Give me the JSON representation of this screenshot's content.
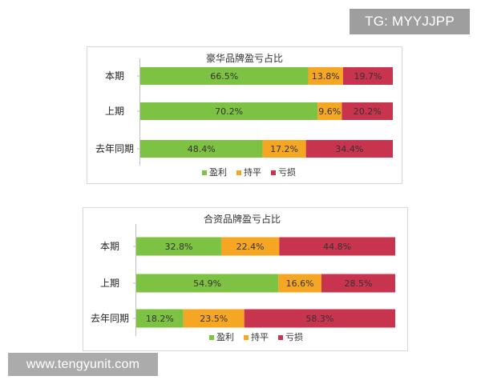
{
  "watermarks": {
    "top_right": "TG: MYYJJPP",
    "bottom_left": "www.tengyunit.com"
  },
  "colors": {
    "profit": "#7dc242",
    "breakeven": "#f5a623",
    "loss": "#c8334d"
  },
  "chart_data": [
    {
      "type": "bar",
      "orientation": "horizontal",
      "stacked": true,
      "percent": true,
      "title": "豪华品牌盈亏占比",
      "categories": [
        "本期",
        "上期",
        "去年同期"
      ],
      "series": [
        {
          "name": "盈利",
          "color": "#7dc242",
          "values": [
            66.5,
            70.2,
            48.4
          ],
          "labels": [
            "66.5%",
            "70.2%",
            "48.4%"
          ]
        },
        {
          "name": "持平",
          "color": "#f5a623",
          "values": [
            13.8,
            9.6,
            17.2
          ],
          "labels": [
            "13.8%",
            "9.6%",
            "17.2%"
          ]
        },
        {
          "name": "亏损",
          "color": "#c8334d",
          "values": [
            19.7,
            20.2,
            34.4
          ],
          "labels": [
            "19.7%",
            "20.2%",
            "34.4%"
          ]
        }
      ],
      "xlim": [
        0,
        100
      ],
      "legend_position": "bottom",
      "grid": false
    },
    {
      "type": "bar",
      "orientation": "horizontal",
      "stacked": true,
      "percent": true,
      "title": "合资品牌盈亏占比",
      "categories": [
        "本期",
        "上期",
        "去年同期"
      ],
      "series": [
        {
          "name": "盈利",
          "color": "#7dc242",
          "values": [
            32.8,
            54.9,
            18.2
          ],
          "labels": [
            "32.8%",
            "54.9%",
            "18.2%"
          ]
        },
        {
          "name": "持平",
          "color": "#f5a623",
          "values": [
            22.4,
            16.6,
            23.5
          ],
          "labels": [
            "22.4%",
            "16.6%",
            "23.5%"
          ]
        },
        {
          "name": "亏损",
          "color": "#c8334d",
          "values": [
            44.8,
            28.5,
            58.3
          ],
          "labels": [
            "44.8%",
            "28.5%",
            "58.3%"
          ]
        }
      ],
      "xlim": [
        0,
        100
      ],
      "legend_position": "bottom",
      "grid": false
    }
  ]
}
